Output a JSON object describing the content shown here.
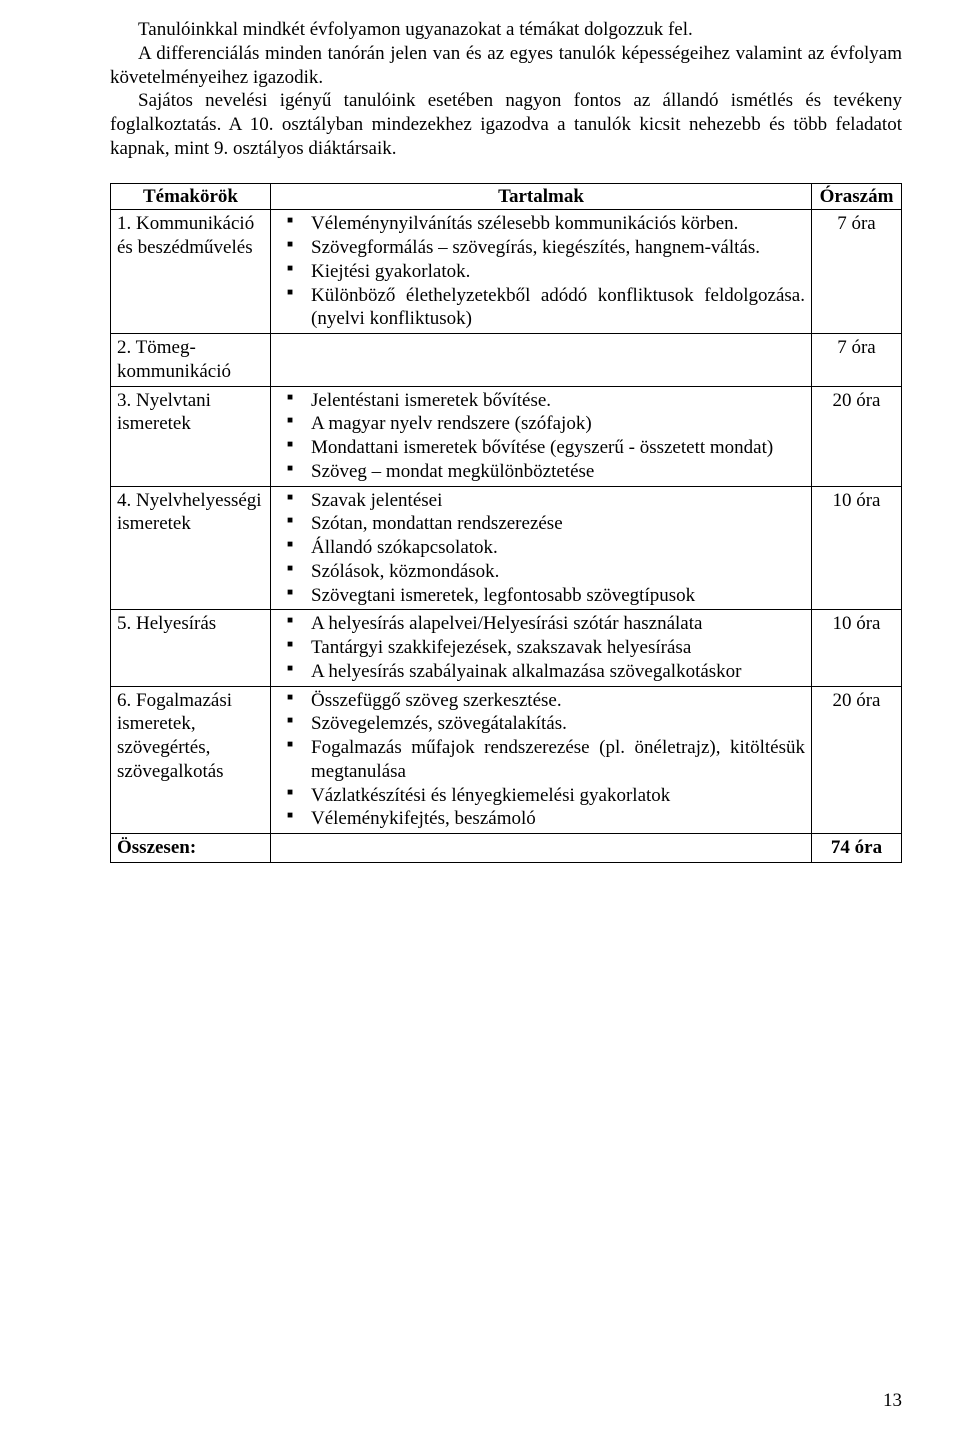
{
  "intro": {
    "p1": "Tanulóinkkal mindkét évfolyamon ugyanazokat a témákat dolgozzuk fel.",
    "p2": "A differenciálás minden tanórán jelen van és az egyes tanulók képességeihez valamint az évfolyam követelményeihez igazodik.",
    "p3": "Sajátos nevelési igényű tanulóink esetében nagyon fontos az állandó ismétlés és tevékeny foglalkoztatás. A 10. osztályban mindezekhez igazodva a tanulók kicsit nehezebb és több feladatot kapnak, mint 9. osztályos diáktársaik."
  },
  "table": {
    "headers": {
      "topics": "Témakörök",
      "content": "Tartalmak",
      "hours": "Óraszám"
    },
    "rows": [
      {
        "topic": "1. Kommunikáció és beszédművelés",
        "items": [
          "Véleménynyilvánítás szélesebb kommunikációs körben.",
          "Szövegformálás – szövegírás, kiegészítés, hangnem-váltás.",
          "Kiejtési gyakorlatok.",
          "Különböző élethelyzetekből adódó konfliktusok feldolgozása. (nyelvi konfliktusok)"
        ],
        "hours": "7 óra"
      },
      {
        "topic": "2. Tömeg-kommunikáció",
        "items": [],
        "hours": "7 óra"
      },
      {
        "topic": "3. Nyelvtani ismeretek",
        "items": [
          "Jelentéstani ismeretek bővítése.",
          "A magyar nyelv rendszere (szófajok)",
          "Mondattani ismeretek bővítése (egyszerű - összetett mondat)",
          "Szöveg – mondat megkülönböztetése"
        ],
        "hours": "20 óra"
      },
      {
        "topic": "4. Nyelvhelyességi ismeretek",
        "items": [
          "Szavak jelentései",
          "Szótan, mondattan rendszerezése",
          "Állandó szókapcsolatok.",
          "Szólások, közmondások.",
          "Szövegtani ismeretek, legfontosabb szövegtípusok"
        ],
        "hours": "10 óra"
      },
      {
        "topic": "5. Helyesírás",
        "items": [
          "A helyesírás alapelvei/Helyesírási szótár használata",
          "Tantárgyi szakkifejezések, szakszavak helyesírása",
          "A helyesírás szabályainak alkalmazása szövegalkotáskor"
        ],
        "hours": "10 óra"
      },
      {
        "topic": "6. Fogalmazási ismeretek, szövegértés, szövegalkotás",
        "items": [
          " Összefüggő szöveg szerkesztése.",
          "Szövegelemzés, szövegátalakítás.",
          "Fogalmazás műfajok rendszerezése (pl. önéletrajz), kitöltésük megtanulása",
          "Vázlatkészítési és lényegkiemelési gyakorlatok",
          "Véleménykifejtés, beszámoló"
        ],
        "hours": "20 óra"
      }
    ],
    "total": {
      "label": "Összesen:",
      "hours": "74 óra"
    }
  },
  "pageNumber": "13"
}
